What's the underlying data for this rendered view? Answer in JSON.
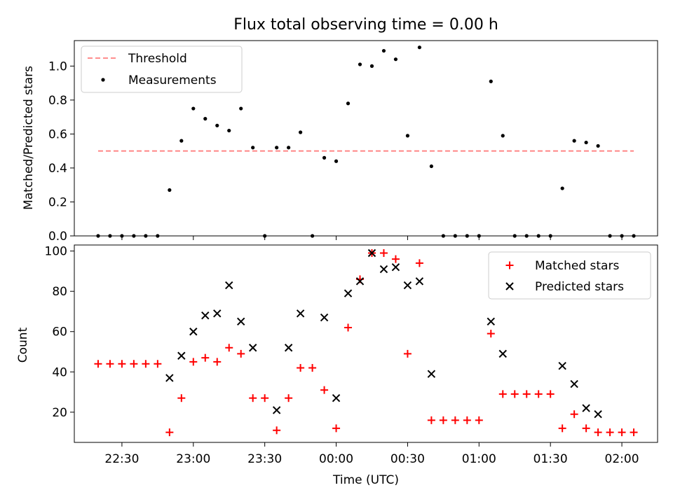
{
  "chart_data": [
    {
      "type": "scatter",
      "title": "Flux total observing time = 0.00 h",
      "xlabel": "",
      "ylabel": "Matched/Predicted stars",
      "ylim": [
        0,
        1.15
      ],
      "yticks": [
        0.0,
        0.2,
        0.4,
        0.6,
        0.8,
        1.0
      ],
      "ytick_labels": [
        "0.0",
        "0.2",
        "0.4",
        "0.6",
        "0.8",
        "1.0"
      ],
      "legend_position": "top-left",
      "threshold": {
        "name": "Threshold",
        "value": 0.5,
        "color": "#ff7f7f",
        "style": "dashed"
      },
      "series": [
        {
          "name": "Measurements",
          "marker": "dot",
          "color": "#000000",
          "x": [
            "22:20",
            "22:25",
            "22:30",
            "22:35",
            "22:40",
            "22:45",
            "22:50",
            "22:55",
            "23:00",
            "23:05",
            "23:10",
            "23:15",
            "23:20",
            "23:25",
            "23:30",
            "23:35",
            "23:40",
            "23:45",
            "23:50",
            "23:55",
            "00:00",
            "00:05",
            "00:10",
            "00:15",
            "00:20",
            "00:25",
            "00:30",
            "00:35",
            "00:40",
            "00:45",
            "00:50",
            "00:55",
            "01:00",
            "01:05",
            "01:10",
            "01:15",
            "01:20",
            "01:25",
            "01:30",
            "01:35",
            "01:40",
            "01:45",
            "01:50",
            "01:55",
            "02:00",
            "02:05"
          ],
          "y": [
            0,
            0,
            0,
            0,
            0,
            0,
            0.27,
            0.56,
            0.75,
            0.69,
            0.65,
            0.62,
            0.75,
            0.52,
            0,
            0.52,
            0.52,
            0.61,
            0,
            0.46,
            0.44,
            0.78,
            1.01,
            1.0,
            1.09,
            1.04,
            0.59,
            1.11,
            0.41,
            0,
            0,
            0,
            0,
            0.91,
            0.59,
            0,
            0,
            0,
            0,
            0.28,
            0.56,
            0.55,
            0.53,
            0,
            0,
            0
          ]
        }
      ]
    },
    {
      "type": "scatter",
      "title": "",
      "xlabel": "Time (UTC)",
      "ylabel": "Count",
      "ylim": [
        5,
        103
      ],
      "yticks": [
        20,
        40,
        60,
        80,
        100
      ],
      "ytick_labels": [
        "20",
        "40",
        "60",
        "80",
        "100"
      ],
      "xticks": [
        "22:30",
        "23:00",
        "23:30",
        "00:00",
        "00:30",
        "01:00",
        "01:30",
        "02:00"
      ],
      "xlim": [
        "22:10",
        "02:15"
      ],
      "legend_position": "top-right",
      "series": [
        {
          "name": "Matched stars",
          "marker": "plus",
          "color": "#ff0000",
          "x": [
            "22:20",
            "22:25",
            "22:30",
            "22:35",
            "22:40",
            "22:45",
            "22:50",
            "22:55",
            "23:00",
            "23:05",
            "23:10",
            "23:15",
            "23:20",
            "23:25",
            "23:30",
            "23:35",
            "23:40",
            "23:45",
            "23:50",
            "23:55",
            "00:00",
            "00:05",
            "00:10",
            "00:15",
            "00:20",
            "00:25",
            "00:30",
            "00:35",
            "00:40",
            "00:45",
            "00:50",
            "00:55",
            "01:00",
            "01:05",
            "01:10",
            "01:15",
            "01:20",
            "01:25",
            "01:30",
            "01:35",
            "01:40",
            "01:45",
            "01:50",
            "01:55",
            "02:00",
            "02:05"
          ],
          "y": [
            44,
            44,
            44,
            44,
            44,
            44,
            10,
            27,
            45,
            47,
            45,
            52,
            49,
            27,
            27,
            11,
            27,
            42,
            42,
            31,
            12,
            62,
            86,
            99,
            99,
            96,
            49,
            94,
            16,
            16,
            16,
            16,
            16,
            59,
            29,
            29,
            29,
            29,
            29,
            12,
            19,
            12,
            10,
            10,
            10,
            10
          ]
        },
        {
          "name": "Predicted stars",
          "marker": "x",
          "color": "#000000",
          "x": [
            "22:50",
            "22:55",
            "23:00",
            "23:05",
            "23:10",
            "23:15",
            "23:20",
            "23:25",
            "23:35",
            "23:40",
            "23:45",
            "23:55",
            "00:00",
            "00:05",
            "00:10",
            "00:15",
            "00:20",
            "00:25",
            "00:30",
            "00:35",
            "00:40",
            "01:05",
            "01:10",
            "01:35",
            "01:40",
            "01:45",
            "01:50"
          ],
          "y": [
            37,
            48,
            60,
            68,
            69,
            83,
            65,
            52,
            21,
            52,
            69,
            67,
            27,
            79,
            85,
            99,
            91,
            92,
            83,
            85,
            39,
            65,
            49,
            43,
            34,
            22,
            19
          ]
        }
      ]
    }
  ]
}
